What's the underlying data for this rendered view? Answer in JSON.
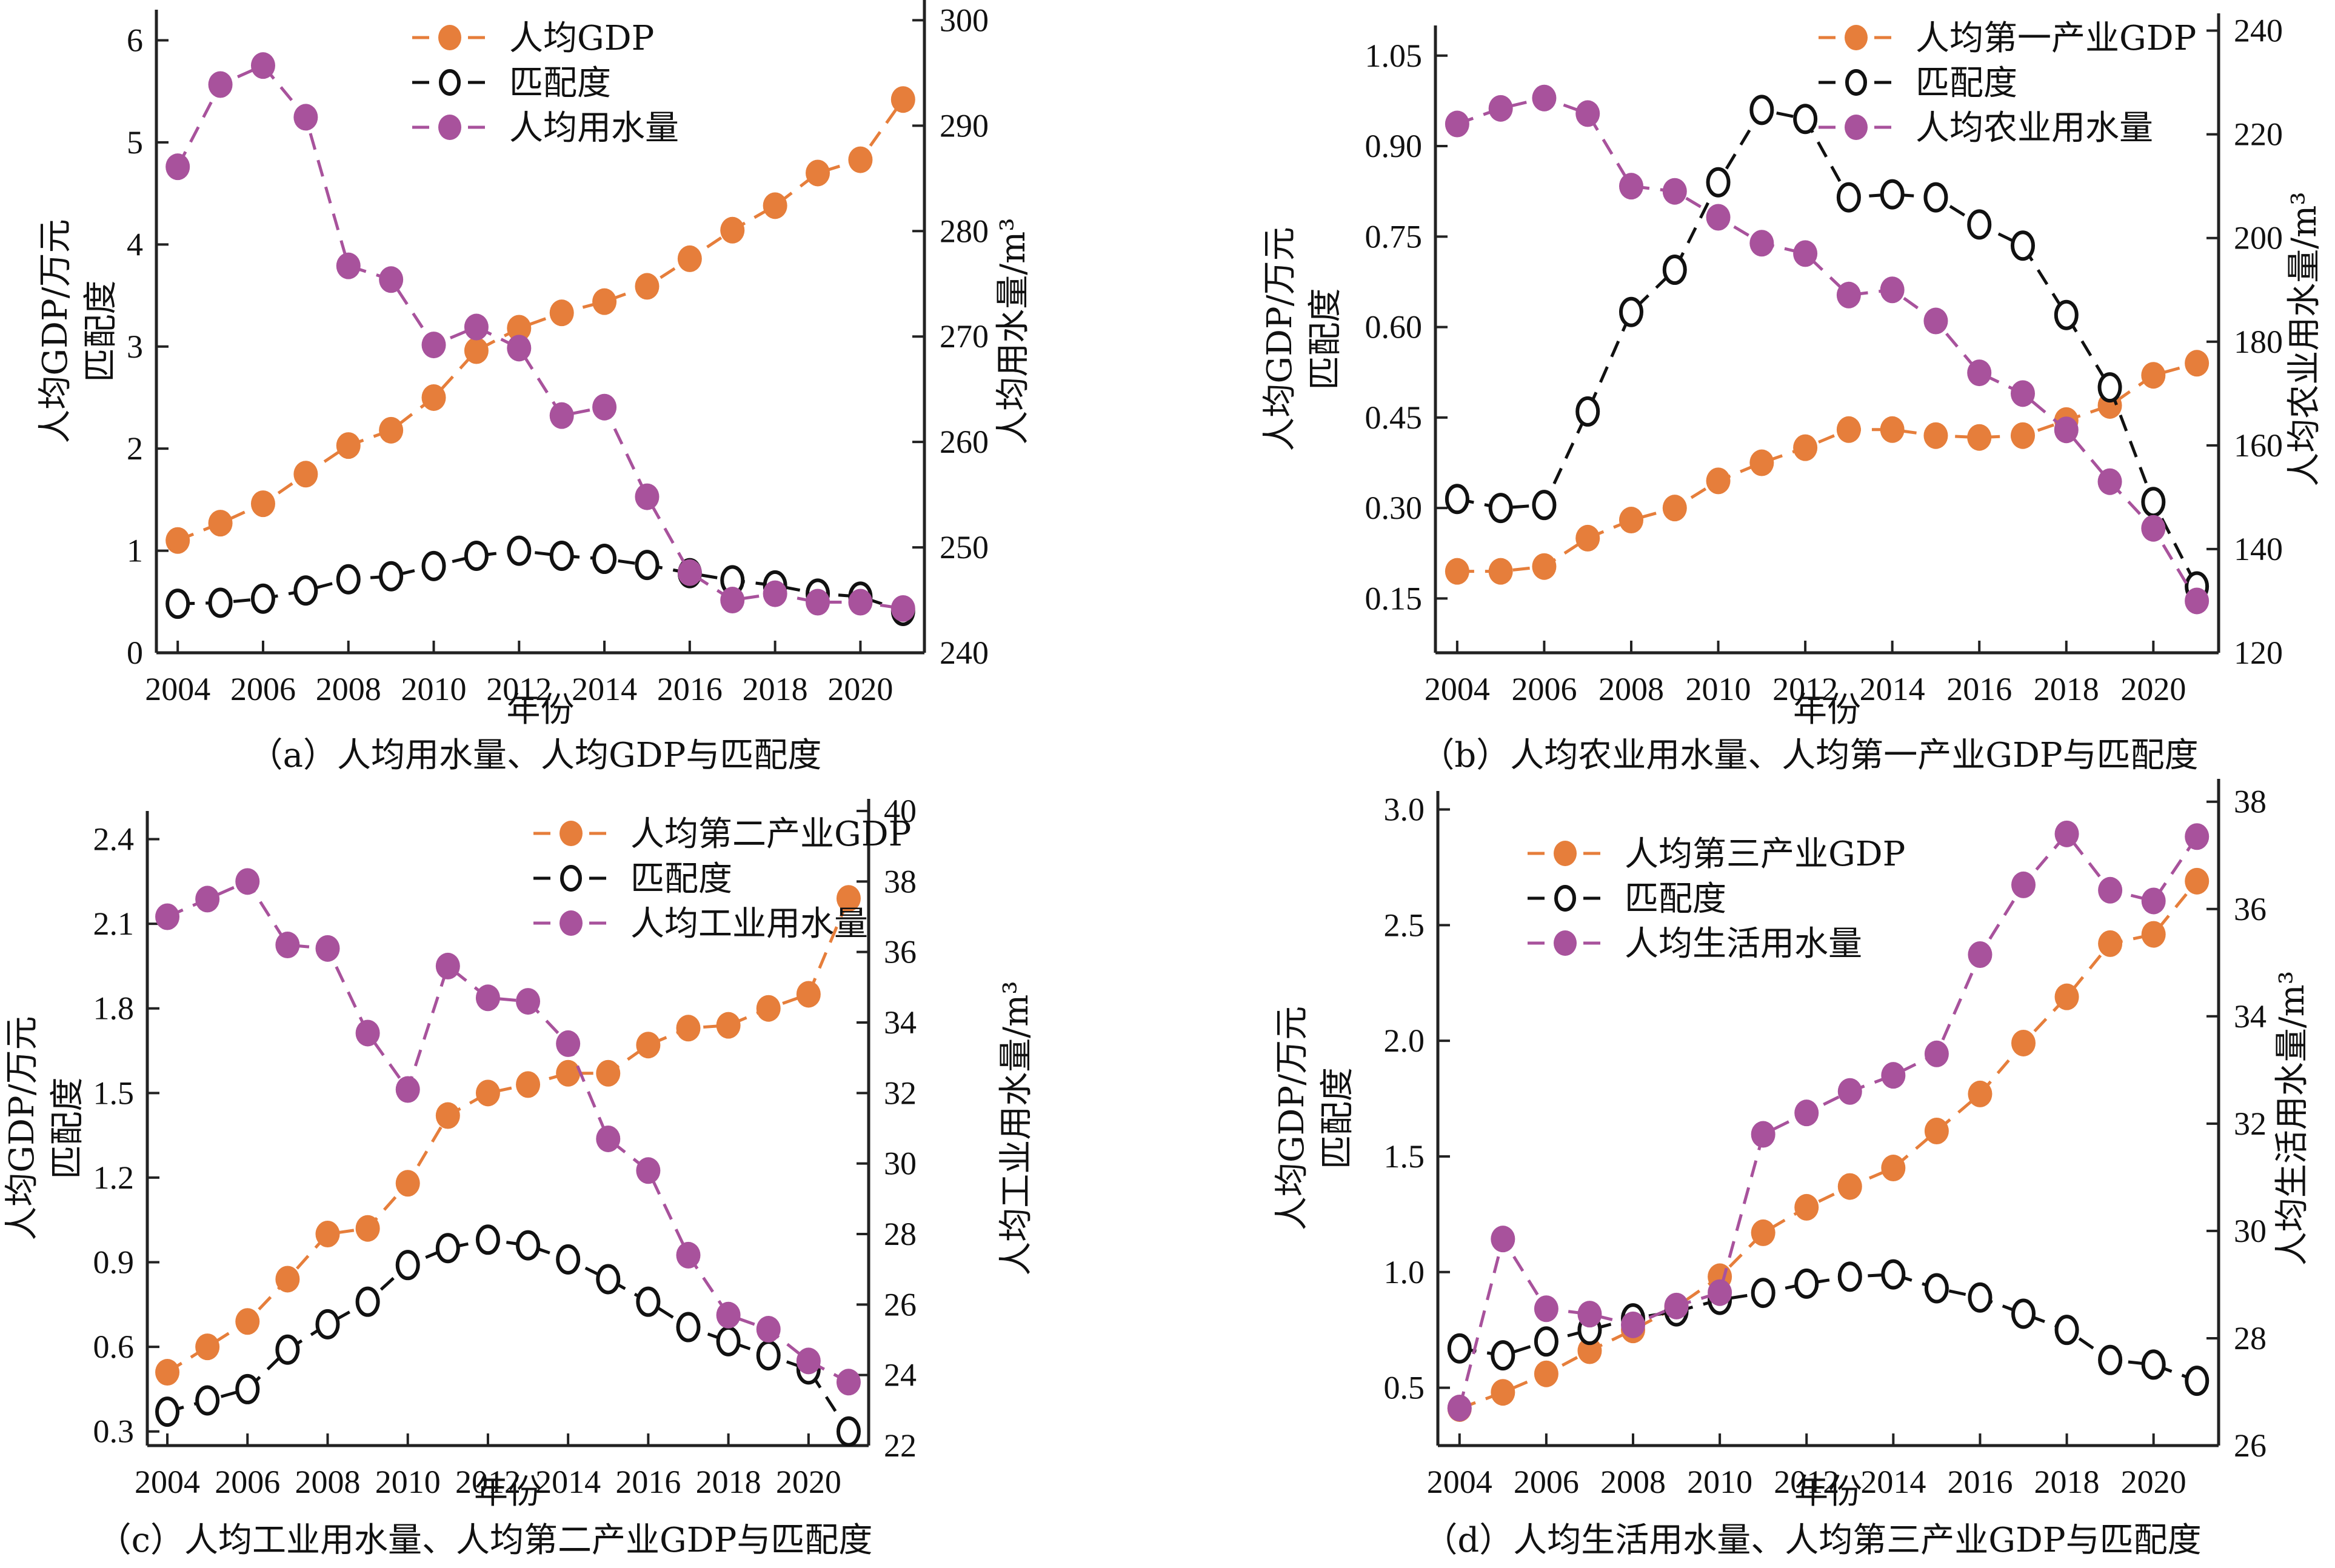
{
  "colors": {
    "gdp": "#E67E3B",
    "match": "#111111",
    "water": "#A8529C"
  },
  "chart_data": [
    {
      "id": "a",
      "type": "line",
      "title": "",
      "caption": "（a）人均用水量、人均GDP与匹配度",
      "xlabel": "年份",
      "ylabel_left": [
        "人均GDP/万元",
        "匹配度"
      ],
      "ylabel_right": "人均用水量/m³",
      "x": [
        2004,
        2005,
        2006,
        2007,
        2008,
        2009,
        2010,
        2011,
        2012,
        2013,
        2014,
        2015,
        2016,
        2017,
        2018,
        2019,
        2020,
        2021
      ],
      "xticks": [
        "2004",
        "2006",
        "2008",
        "2010",
        "2012",
        "2014",
        "2016",
        "2018",
        "2020"
      ],
      "ylim_left": [
        0,
        6.3
      ],
      "yticks_left": [
        "0",
        "1",
        "2",
        "3",
        "4",
        "5",
        "6"
      ],
      "ytick_values_left": [
        0,
        1,
        2,
        3,
        4,
        5,
        6
      ],
      "ylim_right": [
        240,
        301
      ],
      "yticks_right": [
        "240",
        "250",
        "260",
        "270",
        "280",
        "290",
        "300"
      ],
      "ytick_values_right": [
        240,
        250,
        260,
        270,
        280,
        290,
        300
      ],
      "legend_position": "top-center",
      "grid": false,
      "series": [
        {
          "name": "人均GDP",
          "axis": "left",
          "style": "filled",
          "color_key": "gdp",
          "values": [
            1.1,
            1.27,
            1.46,
            1.75,
            2.03,
            2.18,
            2.5,
            2.96,
            3.18,
            3.33,
            3.44,
            3.59,
            3.86,
            4.14,
            4.38,
            4.7,
            4.83,
            5.42
          ]
        },
        {
          "name": "匹配度",
          "axis": "left",
          "style": "hollow",
          "color_key": "match",
          "values": [
            0.48,
            0.49,
            0.53,
            0.61,
            0.72,
            0.75,
            0.85,
            0.95,
            1.0,
            0.95,
            0.92,
            0.86,
            0.78,
            0.71,
            0.66,
            0.58,
            0.55,
            0.41
          ]
        },
        {
          "name": "人均用水量",
          "axis": "right",
          "style": "filled",
          "color_key": "water",
          "values": [
            286.1,
            293.9,
            295.7,
            290.8,
            276.7,
            275.4,
            269.2,
            270.9,
            268.9,
            262.5,
            263.3,
            254.8,
            247.6,
            245.0,
            245.6,
            244.8,
            244.8,
            244.2
          ]
        }
      ]
    },
    {
      "id": "b",
      "type": "line",
      "title": "",
      "caption": "（b）人均农业用水量、人均第一产业GDP与匹配度",
      "xlabel": "年份",
      "ylabel_left": [
        "人均GDP/万元",
        "匹配度"
      ],
      "ylabel_right": "人均农业用水量/m³",
      "x": [
        2004,
        2005,
        2006,
        2007,
        2008,
        2009,
        2010,
        2011,
        2012,
        2013,
        2014,
        2015,
        2016,
        2017,
        2018,
        2019,
        2020,
        2021
      ],
      "xticks": [
        "2004",
        "2006",
        "2008",
        "2010",
        "2012",
        "2014",
        "2016",
        "2018",
        "2020"
      ],
      "ylim_left": [
        0.06,
        1.1
      ],
      "yticks_left": [
        "0.15",
        "0.30",
        "0.45",
        "0.60",
        "0.75",
        "0.90",
        "1.05"
      ],
      "ytick_values_left": [
        0.15,
        0.3,
        0.45,
        0.6,
        0.75,
        0.9,
        1.05
      ],
      "ylim_right": [
        120,
        241
      ],
      "yticks_right": [
        "120",
        "140",
        "160",
        "180",
        "200",
        "220",
        "240"
      ],
      "ytick_values_right": [
        120,
        140,
        160,
        180,
        200,
        220,
        240
      ],
      "legend_position": "top-right",
      "grid": false,
      "series": [
        {
          "name": "人均第一产业GDP",
          "axis": "left",
          "style": "filled",
          "color_key": "gdp",
          "values": [
            0.195,
            0.195,
            0.203,
            0.25,
            0.28,
            0.3,
            0.345,
            0.375,
            0.4,
            0.43,
            0.43,
            0.42,
            0.417,
            0.42,
            0.445,
            0.47,
            0.52,
            0.54
          ]
        },
        {
          "name": "匹配度",
          "axis": "left",
          "style": "hollow",
          "color_key": "match",
          "values": [
            0.315,
            0.3,
            0.305,
            0.46,
            0.625,
            0.695,
            0.84,
            0.96,
            0.945,
            0.815,
            0.82,
            0.815,
            0.77,
            0.735,
            0.62,
            0.5,
            0.31,
            0.17
          ]
        },
        {
          "name": "人均农业用水量",
          "axis": "right",
          "style": "filled",
          "color_key": "water",
          "values": [
            222,
            225,
            227,
            224,
            210,
            209,
            204,
            199,
            197,
            189,
            190,
            184,
            174,
            170,
            163,
            153,
            144,
            130
          ]
        }
      ]
    },
    {
      "id": "c",
      "type": "line",
      "title": "",
      "caption": "（c）人均工业用水量、人均第二产业GDP与匹配度",
      "xlabel": "年份",
      "ylabel_left": [
        "人均GDP/万元",
        "匹配度"
      ],
      "ylabel_right": "人均工业用水量/m³",
      "x": [
        2004,
        2005,
        2006,
        2007,
        2008,
        2009,
        2010,
        2011,
        2012,
        2013,
        2014,
        2015,
        2016,
        2017,
        2018,
        2019,
        2020,
        2021
      ],
      "xticks": [
        "2004",
        "2006",
        "2008",
        "2010",
        "2012",
        "2014",
        "2016",
        "2018",
        "2020"
      ],
      "ylim_left": [
        0.25,
        2.5
      ],
      "yticks_left": [
        "0.3",
        "0.6",
        "0.9",
        "1.2",
        "1.5",
        "1.8",
        "2.1",
        "2.4"
      ],
      "ytick_values_left": [
        0.3,
        0.6,
        0.9,
        1.2,
        1.5,
        1.8,
        2.1,
        2.4
      ],
      "ylim_right": [
        22,
        40
      ],
      "yticks_right": [
        "22",
        "24",
        "26",
        "28",
        "30",
        "32",
        "34",
        "36",
        "38",
        "40"
      ],
      "ytick_values_right": [
        22,
        24,
        26,
        28,
        30,
        32,
        34,
        36,
        38,
        40
      ],
      "legend_position": "top-right",
      "grid": false,
      "series": [
        {
          "name": "人均第二产业GDP",
          "axis": "left",
          "style": "filled",
          "color_key": "gdp",
          "values": [
            0.51,
            0.6,
            0.69,
            0.84,
            1.0,
            1.02,
            1.18,
            1.42,
            1.5,
            1.53,
            1.57,
            1.57,
            1.67,
            1.73,
            1.74,
            1.8,
            1.85,
            2.19
          ]
        },
        {
          "name": "匹配度",
          "axis": "left",
          "style": "hollow",
          "color_key": "match",
          "values": [
            0.37,
            0.41,
            0.45,
            0.59,
            0.68,
            0.76,
            0.89,
            0.95,
            0.98,
            0.96,
            0.91,
            0.84,
            0.76,
            0.67,
            0.62,
            0.57,
            0.52,
            0.3
          ]
        },
        {
          "name": "人均工业用水量",
          "axis": "right",
          "style": "filled",
          "color_key": "water",
          "values": [
            37.0,
            37.5,
            38.0,
            36.2,
            36.1,
            33.7,
            32.1,
            35.6,
            34.7,
            34.6,
            33.4,
            30.7,
            29.8,
            27.4,
            25.7,
            25.3,
            24.4,
            23.8
          ]
        }
      ]
    },
    {
      "id": "d",
      "type": "line",
      "title": "",
      "caption": "（d）人均生活用水量、人均第三产业GDP与匹配度",
      "xlabel": "年份",
      "ylabel_left": [
        "人均GDP/万元",
        "匹配度"
      ],
      "ylabel_right": "人均生活用水量/m³",
      "x": [
        2004,
        2005,
        2006,
        2007,
        2008,
        2009,
        2010,
        2011,
        2012,
        2013,
        2014,
        2015,
        2016,
        2017,
        2018,
        2019,
        2020,
        2021
      ],
      "xticks": [
        "2004",
        "2006",
        "2008",
        "2010",
        "2012",
        "2014",
        "2016",
        "2018",
        "2020"
      ],
      "ylim_left": [
        0.25,
        3.08
      ],
      "yticks_left": [
        "0.5",
        "1.0",
        "1.5",
        "2.0",
        "2.5",
        "3.0"
      ],
      "ytick_values_left": [
        0.5,
        1.0,
        1.5,
        2.0,
        2.5,
        3.0
      ],
      "ylim_right": [
        26,
        38.2
      ],
      "yticks_right": [
        "26",
        "28",
        "30",
        "32",
        "34",
        "36",
        "38"
      ],
      "ytick_values_right": [
        26,
        28,
        30,
        32,
        34,
        36,
        38
      ],
      "legend_position": "top-left",
      "grid": false,
      "series": [
        {
          "name": "人均第三产业GDP",
          "axis": "left",
          "style": "filled",
          "color_key": "gdp",
          "values": [
            0.41,
            0.48,
            0.56,
            0.66,
            0.75,
            0.85,
            0.98,
            1.17,
            1.28,
            1.37,
            1.45,
            1.61,
            1.77,
            1.99,
            2.19,
            2.42,
            2.46,
            2.69
          ]
        },
        {
          "name": "匹配度",
          "axis": "left",
          "style": "hollow",
          "color_key": "match",
          "values": [
            0.67,
            0.64,
            0.7,
            0.75,
            0.8,
            0.83,
            0.88,
            0.91,
            0.95,
            0.98,
            0.99,
            0.93,
            0.89,
            0.82,
            0.75,
            0.62,
            0.6,
            0.53
          ]
        },
        {
          "name": "人均生活用水量",
          "axis": "right",
          "style": "filled",
          "color_key": "water",
          "values": [
            26.7,
            29.85,
            28.55,
            28.45,
            28.25,
            28.6,
            28.85,
            31.8,
            32.2,
            32.6,
            32.9,
            33.3,
            35.15,
            36.45,
            37.4,
            36.35,
            36.15,
            37.35
          ]
        }
      ]
    }
  ]
}
